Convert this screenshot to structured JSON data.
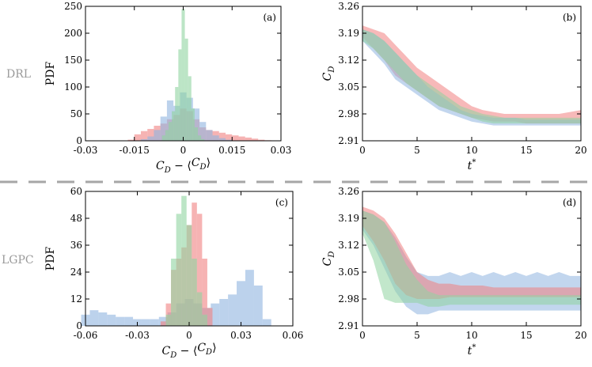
{
  "row_labels": [
    "DRL",
    "LGPC"
  ],
  "colors": {
    "red": "#f08080",
    "blue": "#8fb4e0",
    "green": "#8fd4a0",
    "divider": "#a6a6a6"
  },
  "chart_data": [
    {
      "panel": "(a)",
      "type": "histogram",
      "xlabel": "C_D − ⟨C_D⟩",
      "ylabel": "PDF",
      "xlim": [
        -0.03,
        0.03
      ],
      "ylim": [
        0,
        250
      ],
      "xticks": [
        "-0.03",
        "-0.015",
        "0",
        "0.015",
        "0.03"
      ],
      "yticks": [
        "0",
        "50",
        "100",
        "150",
        "200",
        "250"
      ],
      "series": [
        {
          "color": "red",
          "x": [
            -0.016,
            -0.014,
            -0.012,
            -0.01,
            -0.008,
            -0.006,
            -0.004,
            -0.002,
            0,
            0.002,
            0.004,
            0.006,
            0.008,
            0.01,
            0.012,
            0.014,
            0.016,
            0.018,
            0.02,
            0.022,
            0.024,
            0.026
          ],
          "y": [
            2,
            12,
            18,
            22,
            28,
            32,
            40,
            48,
            60,
            55,
            40,
            25,
            20,
            18,
            15,
            12,
            10,
            8,
            6,
            4,
            2,
            1
          ]
        },
        {
          "color": "blue",
          "x": [
            -0.012,
            -0.01,
            -0.008,
            -0.006,
            -0.004,
            -0.002,
            0,
            0.002,
            0.004,
            0.006,
            0.008,
            0.01,
            0.012,
            0.014
          ],
          "y": [
            3,
            8,
            20,
            45,
            75,
            65,
            90,
            80,
            60,
            35,
            20,
            10,
            5,
            2
          ]
        },
        {
          "color": "green",
          "x": [
            -0.006,
            -0.005,
            -0.004,
            -0.003,
            -0.002,
            -0.001,
            0,
            0.001,
            0.002,
            0.003,
            0.004,
            0.005,
            0.006
          ],
          "y": [
            10,
            20,
            35,
            55,
            100,
            170,
            245,
            190,
            120,
            60,
            25,
            10,
            3
          ]
        }
      ]
    },
    {
      "panel": "(b)",
      "type": "area",
      "xlabel": "t*",
      "ylabel": "C_D",
      "xlim": [
        0,
        20
      ],
      "ylim": [
        2.91,
        3.26
      ],
      "xticks": [
        "0",
        "5",
        "10",
        "15",
        "20"
      ],
      "yticks": [
        "2.91",
        "2.98",
        "3.05",
        "3.12",
        "3.19",
        "3.26"
      ],
      "series": [
        {
          "color": "red",
          "x": [
            0,
            1,
            2,
            3,
            4,
            5,
            6,
            7,
            8,
            9,
            10,
            11,
            12,
            13,
            14,
            15,
            16,
            17,
            18,
            19,
            20
          ],
          "lower": [
            3.18,
            3.15,
            3.12,
            3.08,
            3.06,
            3.04,
            3.02,
            3.0,
            2.99,
            2.98,
            2.97,
            2.965,
            2.96,
            2.96,
            2.96,
            2.955,
            2.955,
            2.955,
            2.955,
            2.955,
            2.955
          ],
          "upper": [
            3.21,
            3.2,
            3.19,
            3.16,
            3.13,
            3.1,
            3.08,
            3.06,
            3.04,
            3.02,
            3.0,
            2.99,
            2.985,
            2.98,
            2.98,
            2.98,
            2.98,
            2.98,
            2.98,
            2.985,
            2.99
          ]
        },
        {
          "color": "blue",
          "x": [
            0,
            1,
            2,
            3,
            4,
            5,
            6,
            7,
            8,
            9,
            10,
            11,
            12,
            13,
            14,
            15,
            16,
            17,
            18,
            19,
            20
          ],
          "lower": [
            3.17,
            3.14,
            3.11,
            3.07,
            3.05,
            3.03,
            3.01,
            2.99,
            2.98,
            2.97,
            2.96,
            2.955,
            2.95,
            2.95,
            2.95,
            2.95,
            2.95,
            2.95,
            2.95,
            2.95,
            2.95
          ],
          "upper": [
            3.2,
            3.19,
            3.17,
            3.14,
            3.11,
            3.08,
            3.05,
            3.03,
            3.01,
            2.99,
            2.98,
            2.975,
            2.97,
            2.97,
            2.97,
            2.965,
            2.965,
            2.965,
            2.965,
            2.965,
            2.965
          ]
        },
        {
          "color": "green",
          "x": [
            0,
            1,
            2,
            3,
            4,
            5,
            6,
            7,
            8,
            9,
            10,
            11,
            12,
            13,
            14,
            15,
            16,
            17,
            18,
            19,
            20
          ],
          "lower": [
            3.17,
            3.15,
            3.12,
            3.09,
            3.06,
            3.04,
            3.02,
            3.0,
            2.99,
            2.98,
            2.97,
            2.96,
            2.955,
            2.955,
            2.955,
            2.955,
            2.955,
            2.955,
            2.955,
            2.955,
            2.955
          ],
          "upper": [
            3.2,
            3.19,
            3.17,
            3.14,
            3.11,
            3.08,
            3.06,
            3.04,
            3.02,
            3.0,
            2.99,
            2.98,
            2.975,
            2.97,
            2.97,
            2.97,
            2.97,
            2.97,
            2.97,
            2.97,
            2.97
          ]
        }
      ]
    },
    {
      "panel": "(c)",
      "type": "histogram",
      "xlabel": "C_D − ⟨C_D⟩",
      "ylabel": "PDF",
      "xlim": [
        -0.06,
        0.06
      ],
      "ylim": [
        0,
        60
      ],
      "xticks": [
        "-0.06",
        "-0.03",
        "0",
        "0.03",
        "0.06"
      ],
      "yticks": [
        "0",
        "12",
        "24",
        "36",
        "48",
        "60"
      ],
      "series": [
        {
          "color": "blue",
          "x": [
            -0.06,
            -0.055,
            -0.05,
            -0.045,
            -0.04,
            -0.035,
            -0.03,
            -0.025,
            -0.02,
            -0.015,
            -0.01,
            -0.005,
            0,
            0.005,
            0.01,
            0.015,
            0.02,
            0.025,
            0.03,
            0.035,
            0.04,
            0.045
          ],
          "y": [
            5,
            7,
            6,
            5,
            4,
            4,
            3,
            3,
            3,
            4,
            6,
            10,
            12,
            10,
            8,
            10,
            12,
            14,
            20,
            25,
            18,
            3
          ]
        },
        {
          "color": "red",
          "x": [
            -0.015,
            -0.012,
            -0.009,
            -0.006,
            -0.003,
            0,
            0.003,
            0.006,
            0.009,
            0.012
          ],
          "y": [
            2,
            10,
            25,
            30,
            35,
            45,
            55,
            50,
            30,
            8
          ]
        },
        {
          "color": "green",
          "x": [
            -0.012,
            -0.009,
            -0.006,
            -0.003,
            0,
            0.003,
            0.006,
            0.009
          ],
          "y": [
            5,
            30,
            50,
            58,
            45,
            30,
            15,
            5
          ]
        }
      ]
    },
    {
      "panel": "(d)",
      "type": "area",
      "xlabel": "t*",
      "ylabel": "C_D",
      "xlim": [
        0,
        20
      ],
      "ylim": [
        2.91,
        3.26
      ],
      "xticks": [
        "0",
        "5",
        "10",
        "15",
        "20"
      ],
      "yticks": [
        "2.91",
        "2.98",
        "3.05",
        "3.12",
        "3.19",
        "3.26"
      ],
      "series": [
        {
          "color": "blue",
          "x": [
            0,
            1,
            2,
            3,
            4,
            5,
            6,
            7,
            8,
            9,
            10,
            11,
            12,
            13,
            14,
            15,
            16,
            17,
            18,
            19,
            20
          ],
          "lower": [
            3.16,
            3.12,
            3.06,
            3.0,
            2.96,
            2.94,
            2.94,
            2.95,
            2.95,
            2.95,
            2.95,
            2.95,
            2.95,
            2.95,
            2.95,
            2.95,
            2.95,
            2.95,
            2.95,
            2.95,
            2.95
          ],
          "upper": [
            3.21,
            3.2,
            3.18,
            3.14,
            3.09,
            3.05,
            3.04,
            3.04,
            3.05,
            3.04,
            3.05,
            3.04,
            3.05,
            3.04,
            3.05,
            3.04,
            3.05,
            3.04,
            3.05,
            3.04,
            3.04
          ]
        },
        {
          "color": "red",
          "x": [
            0,
            1,
            2,
            3,
            4,
            5,
            6,
            7,
            8,
            9,
            10,
            11,
            12,
            13,
            14,
            15,
            16,
            17,
            18,
            19,
            20
          ],
          "lower": [
            3.17,
            3.13,
            3.08,
            3.02,
            2.99,
            2.98,
            2.98,
            2.98,
            2.985,
            2.985,
            2.985,
            2.985,
            2.985,
            2.985,
            2.985,
            2.985,
            2.985,
            2.985,
            2.985,
            2.985,
            2.985
          ],
          "upper": [
            3.22,
            3.21,
            3.19,
            3.15,
            3.1,
            3.05,
            3.03,
            3.02,
            3.02,
            3.015,
            3.015,
            3.015,
            3.01,
            3.01,
            3.01,
            3.01,
            3.01,
            3.01,
            3.01,
            3.01,
            3.01
          ]
        },
        {
          "color": "green",
          "x": [
            0,
            1,
            2,
            3,
            4,
            5,
            6,
            7,
            8,
            9,
            10,
            11,
            12,
            13,
            14,
            15,
            16,
            17,
            18,
            19,
            20
          ],
          "lower": [
            3.15,
            3.08,
            2.98,
            2.97,
            2.97,
            2.97,
            2.96,
            2.96,
            2.965,
            2.965,
            2.965,
            2.965,
            2.965,
            2.965,
            2.965,
            2.965,
            2.965,
            2.965,
            2.965,
            2.965,
            2.965
          ],
          "upper": [
            3.21,
            3.2,
            3.18,
            3.13,
            3.07,
            3.03,
            3.0,
            2.99,
            2.99,
            2.99,
            2.99,
            2.99,
            2.99,
            2.99,
            2.99,
            2.99,
            2.99,
            2.99,
            2.99,
            2.99,
            2.99
          ]
        }
      ]
    }
  ]
}
